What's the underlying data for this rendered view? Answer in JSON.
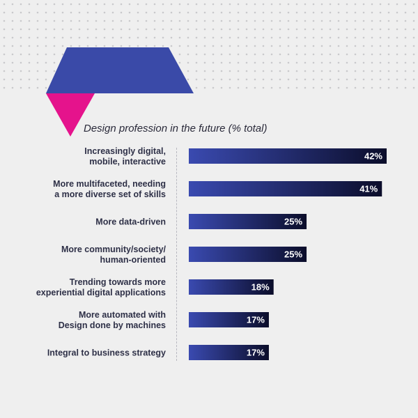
{
  "chart_data": {
    "type": "bar",
    "orientation": "horizontal",
    "title": "Design profession in the future (% total)",
    "categories": [
      [
        "Increasingly digital,",
        "mobile, interactive"
      ],
      [
        "More multifaceted, needing",
        "a more diverse set of skills"
      ],
      [
        "More data-driven"
      ],
      [
        "More community/society/",
        "human-oriented"
      ],
      [
        "Trending towards more",
        "experiential digital applications"
      ],
      [
        "More automated with",
        "Design done by machines"
      ],
      [
        "Integral to business strategy"
      ]
    ],
    "values": [
      42,
      41,
      25,
      25,
      18,
      17,
      17
    ],
    "value_labels": [
      "42%",
      "41%",
      "25%",
      "25%",
      "18%",
      "17%",
      "17%"
    ],
    "unit": "%",
    "xlim": [
      0,
      42
    ],
    "grid": false,
    "colors": {
      "bar_start": "#3a4ab0",
      "bar_end": "#0b0d2a",
      "accent_blue": "#3a4aa8",
      "accent_pink": "#e5138c",
      "text": "#2e3047"
    }
  }
}
